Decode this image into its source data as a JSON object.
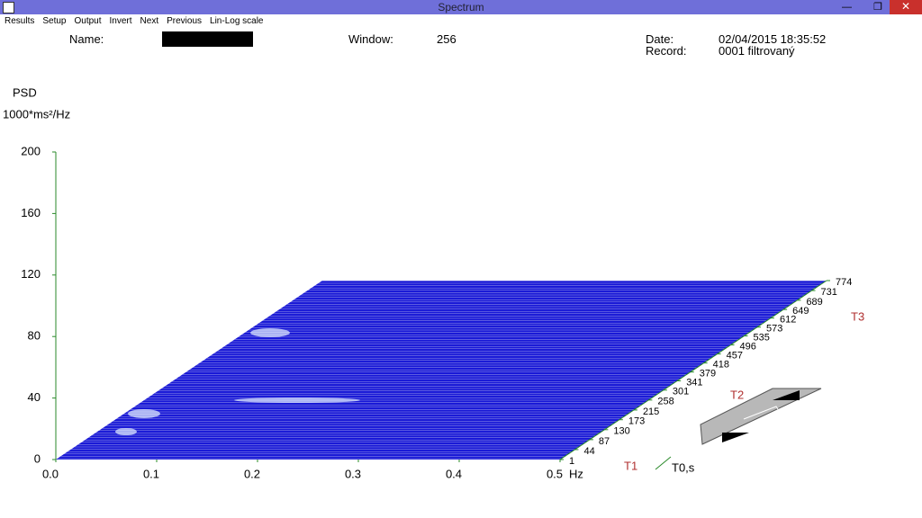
{
  "window": {
    "title": "Spectrum",
    "menu": [
      "Results",
      "Setup",
      "Output",
      "Invert",
      "Next",
      "Previous",
      "Lin-Log scale"
    ]
  },
  "header": {
    "name_label": "Name:",
    "window_label": "Window:",
    "window_value": 256,
    "date_label": "Date:",
    "date_value": "02/04/2015 18:35:52",
    "record_label": "Record:",
    "record_value": "0001 filtrovaný"
  },
  "chart_data": {
    "type": "waterfall",
    "y_label": "PSD",
    "y_unit": "1000*ms²/Hz",
    "x_label": "Hz",
    "z_label": "T0,s",
    "ylim": [
      0,
      200
    ],
    "yticks": [
      0,
      40,
      80,
      120,
      160,
      200
    ],
    "xlim": [
      0,
      0.5
    ],
    "xticks": [
      {
        "value": 0,
        "label": "0.0"
      },
      0.1,
      0.2,
      0.3,
      0.4,
      0.5
    ],
    "zlim": [
      1,
      774
    ],
    "zticks": [
      1,
      44,
      87,
      130,
      173,
      215,
      258,
      301,
      341,
      379,
      418,
      457,
      496,
      535,
      573,
      612,
      649,
      689,
      731,
      774
    ],
    "markers": [
      "T1",
      "T2",
      "T3"
    ]
  }
}
